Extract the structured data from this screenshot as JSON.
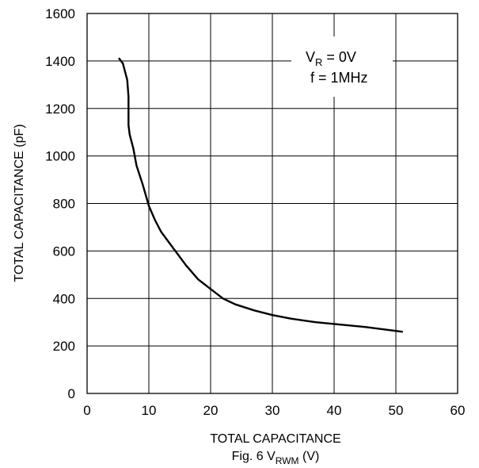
{
  "chart_data": {
    "type": "line",
    "xlim": [
      0,
      60
    ],
    "ylim": [
      0,
      1600
    ],
    "x_ticks": [
      0,
      10,
      20,
      30,
      40,
      50,
      60
    ],
    "y_ticks": [
      0,
      200,
      400,
      600,
      800,
      1000,
      1200,
      1400,
      1600
    ],
    "grid": true,
    "ylabel": "TOTAL CAPACITANCE (pF)",
    "xlabel_line1": "TOTAL CAPACITANCE",
    "xlabel_line2": {
      "prefix": "Fig. 6 V",
      "sub": "RWM",
      "suffix": " (V)"
    },
    "annotation": {
      "line1": {
        "prefix": "V",
        "sub": "R",
        "suffix": " = 0V"
      },
      "line2": "f = 1MHz"
    },
    "series": [
      {
        "x": [
          5.2,
          5.8,
          6.5,
          6.7,
          6.7,
          6.9,
          7.5,
          8.0,
          9.0,
          10.0,
          11.0,
          12.0,
          14.0,
          16.0,
          18.0,
          20.0,
          22.0,
          24.0,
          27.0,
          30.0,
          33.0,
          37.0,
          41.0,
          45.0,
          48.0,
          51.0
        ],
        "y": [
          1410,
          1390,
          1320,
          1250,
          1130,
          1090,
          1030,
          960,
          880,
          790,
          730,
          680,
          610,
          540,
          480,
          440,
          400,
          375,
          350,
          330,
          315,
          300,
          290,
          280,
          270,
          260
        ]
      }
    ]
  }
}
